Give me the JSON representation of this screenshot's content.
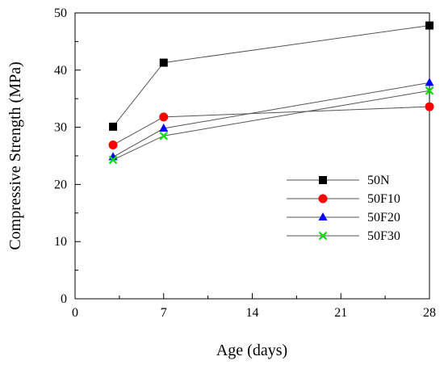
{
  "chart_data": {
    "type": "line",
    "xlabel": "Age (days)",
    "ylabel": "Compressive Strength (MPa)",
    "xlim": [
      0,
      28
    ],
    "ylim": [
      0,
      50
    ],
    "x_ticks": [
      "0",
      "7",
      "14",
      "21",
      "28"
    ],
    "y_ticks": [
      "0",
      "10",
      "20",
      "30",
      "40",
      "50"
    ],
    "grid": false,
    "legend_position": "right",
    "x": [
      3,
      7,
      28
    ],
    "series": [
      {
        "name": "50N",
        "values": [
          30.1,
          41.3,
          47.8
        ],
        "marker": "square",
        "color": "#000000"
      },
      {
        "name": "50F10",
        "values": [
          26.9,
          31.8,
          33.6
        ],
        "marker": "circle",
        "color": "#ff0000"
      },
      {
        "name": "50F20",
        "values": [
          24.8,
          29.8,
          37.8
        ],
        "marker": "triangle",
        "color": "#0000ff"
      },
      {
        "name": "50F30",
        "values": [
          24.3,
          28.5,
          36.4
        ],
        "marker": "cross",
        "color": "#00dd00"
      }
    ]
  }
}
